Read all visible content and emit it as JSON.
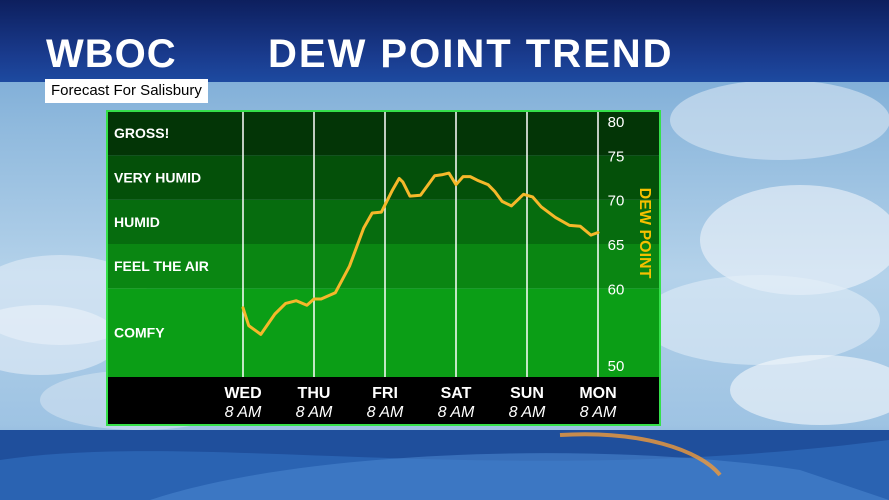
{
  "header": {
    "station": "WBOC",
    "title": "DEW POINT TREND",
    "subtitle": "Forecast For Salisbury"
  },
  "colors": {
    "header_bg": "#122b74",
    "line": "#f5b82a",
    "axis_label": "#f5c000",
    "frame": "#35e04a",
    "footer_bg": "#000000"
  },
  "chart_data": {
    "type": "line",
    "title": "DEW POINT TREND",
    "ylabel": "DEW POINT",
    "ylim": [
      50,
      80
    ],
    "y_ticks": [
      50,
      60,
      65,
      70,
      75,
      80
    ],
    "x_ticks": [
      {
        "day": "WED",
        "time": "8 AM"
      },
      {
        "day": "THU",
        "time": "8 AM"
      },
      {
        "day": "FRI",
        "time": "8 AM"
      },
      {
        "day": "SAT",
        "time": "8 AM"
      },
      {
        "day": "SUN",
        "time": "8 AM"
      },
      {
        "day": "MON",
        "time": "8 AM"
      }
    ],
    "bands": [
      {
        "label": "COMFY",
        "from": 50,
        "to": 60,
        "color": "#0b9e16"
      },
      {
        "label": "FEEL THE AIR",
        "from": 60,
        "to": 65,
        "color": "#0a8612"
      },
      {
        "label": "HUMID",
        "from": 65,
        "to": 70,
        "color": "#066c0e"
      },
      {
        "label": "VERY HUMID",
        "from": 70,
        "to": 75,
        "color": "#045009"
      },
      {
        "label": "GROSS!",
        "from": 75,
        "to": 80,
        "color": "#033506"
      }
    ],
    "series": [
      {
        "x_days": [
          0,
          0.08,
          0.25,
          0.45,
          0.6,
          0.75,
          0.9,
          1.0,
          1.1,
          1.3,
          1.5,
          1.7,
          1.82,
          1.95,
          2.1,
          2.2,
          2.25,
          2.35,
          2.5,
          2.7,
          2.8,
          2.9,
          3.0,
          3.1,
          3.2,
          3.3,
          3.45,
          3.55,
          3.65,
          3.78,
          3.95,
          4.08,
          4.2,
          4.4,
          4.6,
          4.75,
          4.9,
          5.0
        ],
        "values": [
          57.8,
          55.8,
          54.8,
          57.1,
          58.3,
          58.6,
          58.1,
          58.8,
          58.8,
          59.5,
          62.5,
          66.8,
          68.5,
          68.6,
          71.0,
          72.4,
          72.0,
          70.4,
          70.5,
          72.7,
          72.8,
          73.0,
          71.7,
          72.6,
          72.6,
          72.2,
          71.7,
          70.9,
          69.8,
          69.3,
          70.6,
          70.3,
          69.2,
          68.0,
          67.1,
          67.0,
          66.0,
          66.3
        ]
      }
    ]
  }
}
